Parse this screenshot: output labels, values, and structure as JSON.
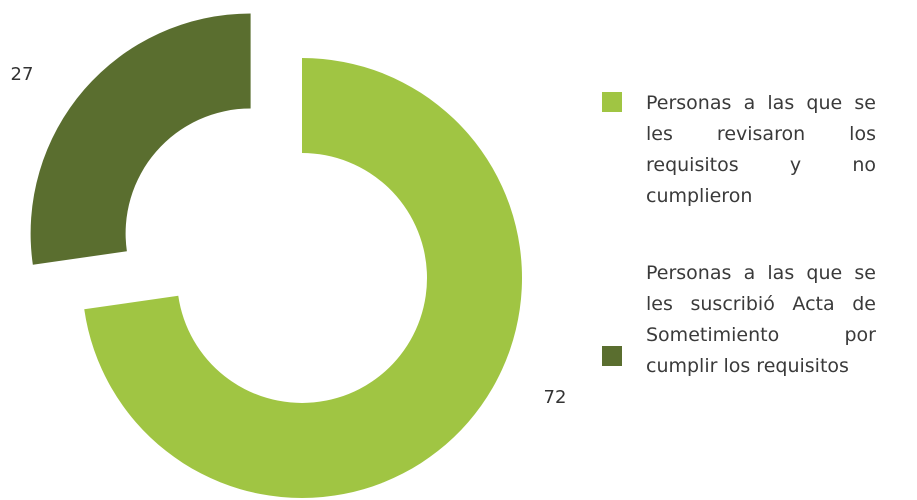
{
  "chart_data": {
    "type": "donut",
    "categories": [
      "Personas a las que se les revisaron los requisitos y no cumplieron",
      "Personas a las que se les suscribió Acta de Sometimiento por cumplir los requisitos"
    ],
    "values": [
      72,
      27
    ],
    "colors": [
      "#a0c543",
      "#5a6e2f"
    ],
    "legend": "right"
  }
}
